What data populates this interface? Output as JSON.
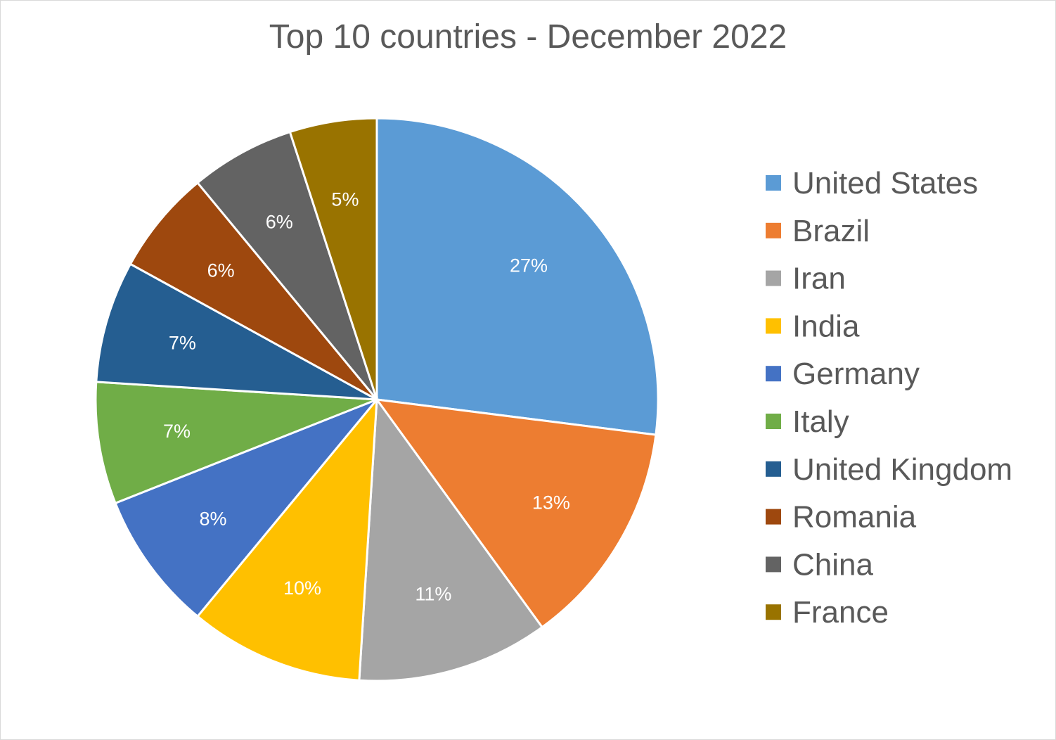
{
  "chart_data": {
    "type": "pie",
    "title": "Top 10 countries - December 2022",
    "legend_position": "right",
    "categories": [
      "United States",
      "Brazil",
      "Iran",
      "India",
      "Germany",
      "Italy",
      "United Kingdom",
      "Romania",
      "China",
      "France"
    ],
    "values": [
      27,
      13,
      11,
      10,
      8,
      7,
      7,
      6,
      6,
      5
    ],
    "labels": [
      "27%",
      "13%",
      "11%",
      "10%",
      "8%",
      "7%",
      "7%",
      "6%",
      "6%",
      "5%"
    ],
    "colors": [
      "#5b9bd5",
      "#ed7d31",
      "#a5a5a5",
      "#ffc000",
      "#4472c4",
      "#70ad47",
      "#255e91",
      "#9e480e",
      "#636363",
      "#997300"
    ]
  }
}
